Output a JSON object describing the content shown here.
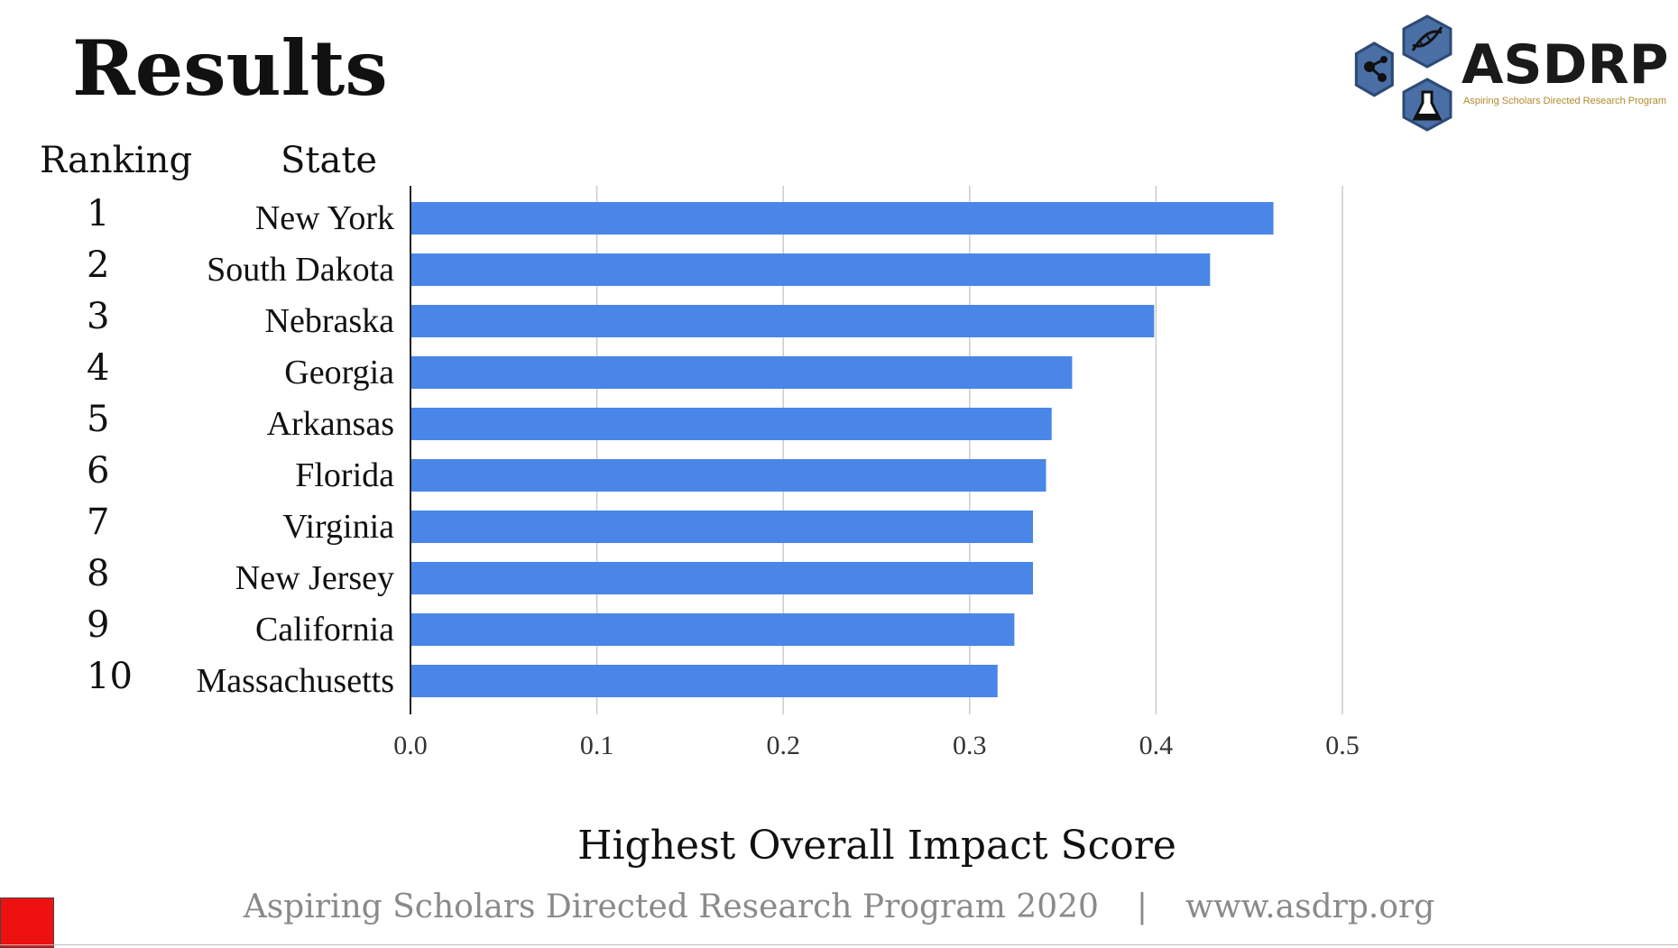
{
  "slide": {
    "title": "Results",
    "ranking_header": "Ranking",
    "state_header": "State",
    "logo": {
      "word": "ASDRP",
      "subtitle": "Aspiring Scholars Directed Research Program",
      "icons": [
        "network-icon",
        "dna-icon",
        "flask-icon"
      ]
    },
    "footer": {
      "left": "Aspiring Scholars Directed Research Program 2020",
      "separator": "|",
      "right": "www.asdrp.org"
    },
    "accent_color": "#ee1111"
  },
  "chart_data": {
    "type": "bar",
    "orientation": "horizontal",
    "xlabel": "Highest Overall Impact Score",
    "xlim": [
      0,
      0.5
    ],
    "xticks": [
      "0.0",
      "0.1",
      "0.2",
      "0.3",
      "0.4",
      "0.5"
    ],
    "grid": true,
    "bar_color": "#4a86e8",
    "rankings": [
      "1",
      "2",
      "3",
      "4",
      "5",
      "6",
      "7",
      "8",
      "9",
      "10"
    ],
    "categories": [
      "New York",
      "South Dakota",
      "Nebraska",
      "Georgia",
      "Arkansas",
      "Florida",
      "Virginia",
      "New Jersey",
      "California",
      "Massachusetts"
    ],
    "values": [
      0.463,
      0.429,
      0.399,
      0.355,
      0.344,
      0.341,
      0.334,
      0.334,
      0.324,
      0.315
    ]
  }
}
